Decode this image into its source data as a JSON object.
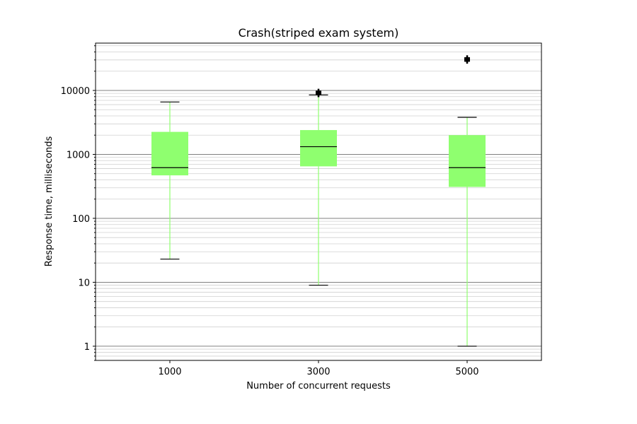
{
  "chart_data": {
    "type": "boxplot",
    "title": "Crash(striped exam system)",
    "xlabel": "Number of concurrent requests",
    "ylabel": "Response time, milliseconds",
    "yscale": "log",
    "ylim": [
      0.6,
      55000
    ],
    "yticks": [
      {
        "value": 1,
        "label": "1"
      },
      {
        "value": 10,
        "label": "10"
      },
      {
        "value": 100,
        "label": "100"
      },
      {
        "value": 1000,
        "label": "1000"
      },
      {
        "value": 10000,
        "label": "10000"
      }
    ],
    "grid": "major and minor horizontal",
    "categories": [
      "1000",
      "3000",
      "5000"
    ],
    "boxes": [
      {
        "category": "1000",
        "whisker_low": 23,
        "q1": 470,
        "median": 620,
        "q3": 2250,
        "whisker_high": 6600,
        "outliers": []
      },
      {
        "category": "3000",
        "whisker_low": 9,
        "q1": 650,
        "median": 1320,
        "q3": 2400,
        "whisker_high": 8500,
        "outliers": [
          8700,
          9100,
          9600
        ]
      },
      {
        "category": "5000",
        "whisker_low": 1,
        "q1": 310,
        "median": 620,
        "q3": 2000,
        "whisker_high": 3800,
        "outliers": [
          29000,
          30500,
          32000
        ]
      }
    ],
    "colors": {
      "box_fill": "#8fff6f",
      "whisker": "#8fff6f",
      "median": "#000000",
      "cap": "#000000",
      "outlier": "#000000",
      "grid_major": "#808080",
      "grid_minor": "#d0d0d0"
    }
  }
}
